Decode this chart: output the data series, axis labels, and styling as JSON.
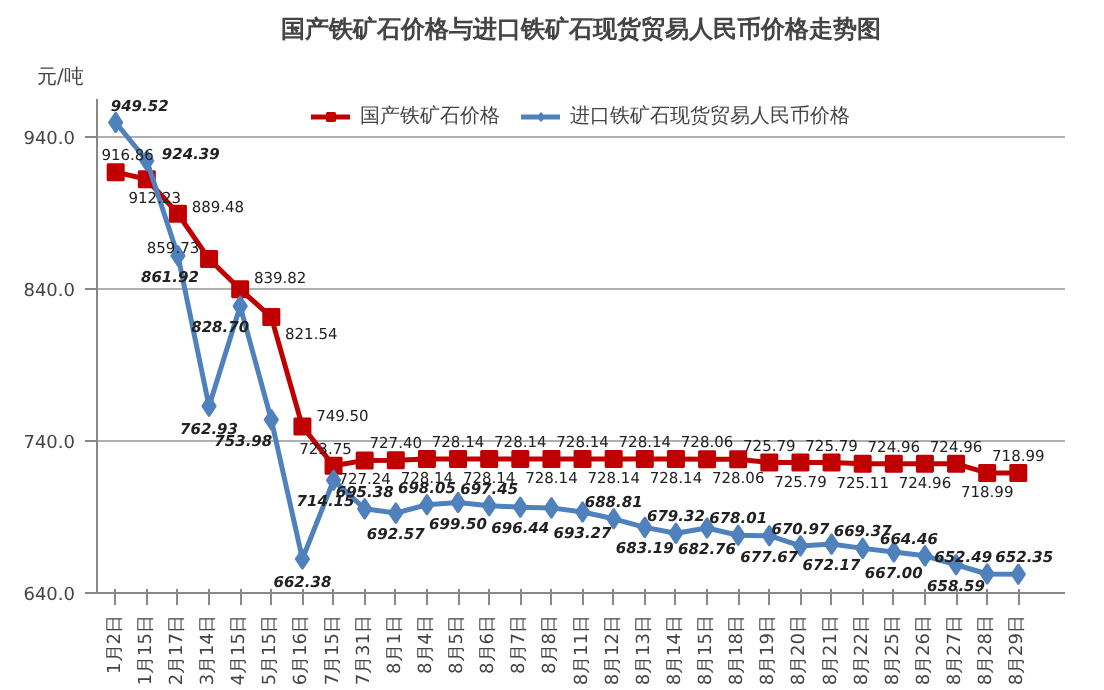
{
  "chart_data": {
    "type": "line",
    "title": "国产铁矿石价格与进口铁矿石现货贸易人民币价格走势图",
    "ylabel": "元/吨",
    "categories": [
      "1月2日",
      "1月15日",
      "2月17日",
      "3月14日",
      "4月15日",
      "5月15日",
      "6月16日",
      "7月15日",
      "7月31日",
      "8月1日",
      "8月4日",
      "8月5日",
      "8月6日",
      "8月7日",
      "8月8日",
      "8月11日",
      "8月12日",
      "8月13日",
      "8月14日",
      "8月15日",
      "8月18日",
      "8月19日",
      "8月20日",
      "8月21日",
      "8月22日",
      "8月25日",
      "8月26日",
      "8月27日",
      "8月28日",
      "8月29日"
    ],
    "series": [
      {
        "name": "国产铁矿石价格",
        "color": "#c00000",
        "marker": "square",
        "values": [
          916.86,
          912.23,
          889.48,
          859.73,
          839.82,
          821.54,
          749.5,
          723.75,
          727.24,
          727.4,
          728.14,
          728.14,
          728.14,
          728.14,
          728.14,
          728.14,
          728.14,
          728.14,
          728.14,
          728.06,
          728.06,
          725.79,
          725.79,
          725.79,
          725.11,
          724.96,
          724.96,
          724.96,
          718.99,
          718.99
        ],
        "value_labels": [
          "916.86",
          "912.23",
          "889.48",
          "859.73",
          "839.82",
          "821.54",
          "749.50",
          "723.75",
          "727.24",
          "727.40",
          "728.14",
          "728.14",
          "728.14",
          "728.14",
          "728.14",
          "728.14",
          "728.14",
          "728.14",
          "728.14",
          "728.06",
          "728.06",
          "725.79",
          "725.79",
          "725.79",
          "725.11",
          "724.96",
          "724.96",
          "724.96",
          "718.99",
          "718.99"
        ]
      },
      {
        "name": "进口铁矿石现货贸易人民币价格",
        "color": "#4f81bd",
        "marker": "diamond",
        "values": [
          949.52,
          924.39,
          861.92,
          762.93,
          828.7,
          753.98,
          662.38,
          714.15,
          695.38,
          692.57,
          698.05,
          699.5,
          697.45,
          696.44,
          696,
          693.27,
          688.81,
          683.19,
          679.32,
          682.76,
          678.01,
          677.67,
          670.97,
          672.17,
          669.37,
          667.0,
          664.46,
          658.59,
          652.49,
          652.35
        ],
        "value_labels": [
          "949.52",
          "924.39",
          "861.92",
          "762.93",
          "828.70",
          "753.98",
          "662.38",
          "714.15",
          "695.38",
          "692.57",
          "698.05",
          "699.50",
          "697.45",
          "696.44",
          null,
          "693.27",
          "688.81",
          "683.19",
          "679.32",
          "682.76",
          "678.01",
          "677.67",
          "670.97",
          "672.17",
          "669.37",
          "667.00",
          "664.46",
          "658.59",
          "652.49",
          "652.35"
        ]
      }
    ],
    "ylim": [
      640,
      965
    ],
    "yticks": [
      {
        "value": 640,
        "label": "640.0"
      },
      {
        "value": 740,
        "label": "740.0"
      },
      {
        "value": 840,
        "label": "840.0"
      },
      {
        "value": 940,
        "label": "940.0"
      }
    ],
    "grid": "y",
    "legend": "top",
    "line_style": "solid"
  }
}
